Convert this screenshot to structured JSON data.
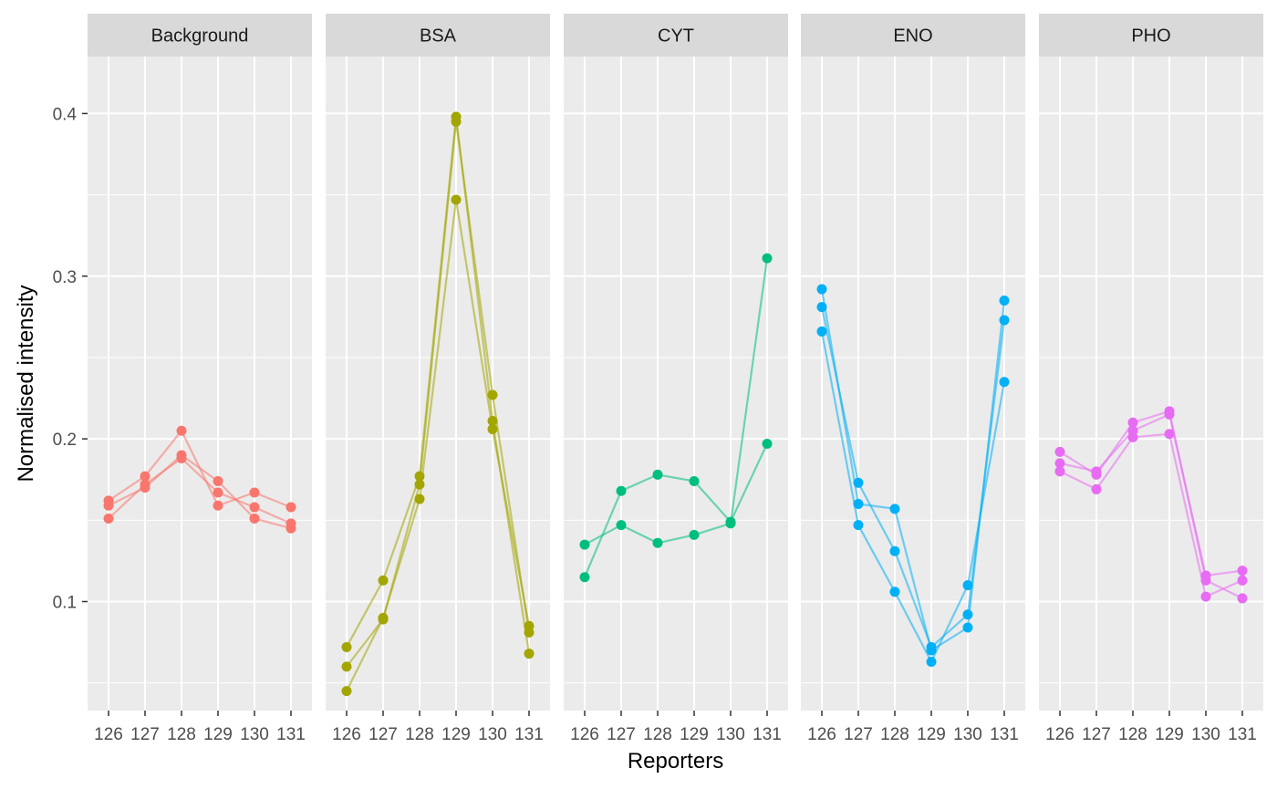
{
  "chart_data": {
    "type": "line",
    "facet_by": "protein",
    "xlabel": "Reporters",
    "ylabel": "Normalised intensity",
    "x": [
      "126",
      "127",
      "128",
      "129",
      "130",
      "131"
    ],
    "ylim": [
      0.033,
      0.435
    ],
    "y_ticks": [
      0.1,
      0.2,
      0.3,
      0.4
    ],
    "y_tick_labels": [
      "0.1",
      "0.2",
      "0.3",
      "0.4"
    ],
    "grid": true,
    "panel_background": "#ebebeb",
    "strip_background": "#d9d9d9",
    "facets": [
      {
        "label": "Background",
        "color": "#F8766D",
        "series": [
          {
            "values": [
              0.162,
              0.177,
              0.205,
              0.159,
              0.167,
              0.158
            ]
          },
          {
            "values": [
              0.159,
              0.17,
              0.19,
              0.174,
              0.151,
              0.145
            ]
          },
          {
            "values": [
              0.151,
              0.172,
              0.188,
              0.167,
              0.158,
              0.148
            ]
          }
        ]
      },
      {
        "label": "BSA",
        "color": "#A3A500",
        "series": [
          {
            "values": [
              0.072,
              0.113,
              0.177,
              0.398,
              0.211,
              0.068
            ]
          },
          {
            "values": [
              0.06,
              0.089,
              0.172,
              0.395,
              0.227,
              0.081
            ]
          },
          {
            "values": [
              0.045,
              0.09,
              0.163,
              0.347,
              0.206,
              0.085
            ]
          }
        ]
      },
      {
        "label": "CYT",
        "color": "#00BF7D",
        "series": [
          {
            "values": [
              0.135,
              0.147,
              0.136,
              0.141,
              0.148,
              0.311
            ]
          },
          {
            "values": [
              0.115,
              0.168,
              0.178,
              0.174,
              0.149,
              0.197
            ]
          }
        ]
      },
      {
        "label": "ENO",
        "color": "#00B0F6",
        "series": [
          {
            "values": [
              0.292,
              0.16,
              0.157,
              0.07,
              0.084,
              0.285
            ]
          },
          {
            "values": [
              0.281,
              0.173,
              0.131,
              0.072,
              0.092,
              0.273
            ]
          },
          {
            "values": [
              0.266,
              0.147,
              0.106,
              0.063,
              0.11,
              0.235
            ]
          }
        ]
      },
      {
        "label": "PHO",
        "color": "#E76BF3",
        "series": [
          {
            "values": [
              0.192,
              0.178,
              0.21,
              0.217,
              0.113,
              0.102
            ]
          },
          {
            "values": [
              0.185,
              0.18,
              0.205,
              0.215,
              0.116,
              0.119
            ]
          },
          {
            "values": [
              0.18,
              0.169,
              0.201,
              0.203,
              0.103,
              0.113
            ]
          }
        ]
      }
    ]
  }
}
